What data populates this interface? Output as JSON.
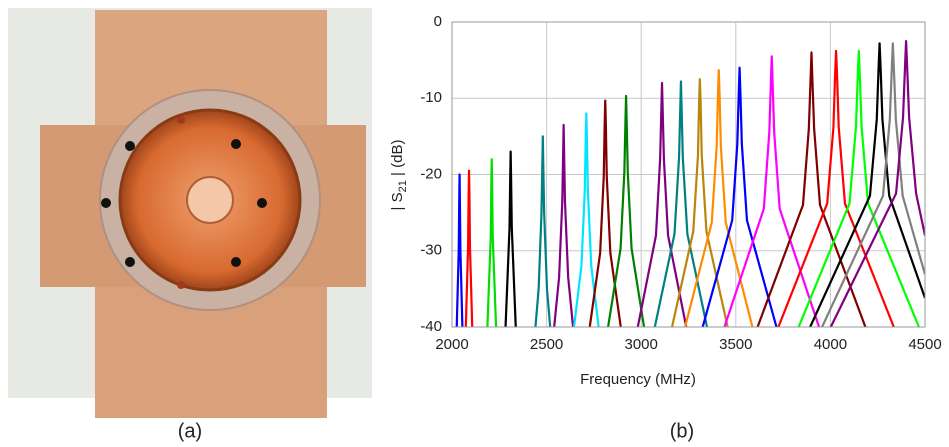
{
  "panel_a": {
    "caption": "(a)"
  },
  "panel_b": {
    "caption": "(b)"
  },
  "chart_data": {
    "type": "line",
    "xlabel": "Frequency (MHz)",
    "ylabel": [
      "| S",
      "21",
      " |  (dB)"
    ],
    "xlim": [
      2000,
      4500
    ],
    "xticks": [
      2000,
      2500,
      3000,
      3500,
      4000,
      4500
    ],
    "ylim": [
      -40,
      0
    ],
    "yticks": [
      -40,
      -30,
      -20,
      -10,
      0
    ],
    "grid": true,
    "series": [
      {
        "color": "#0000ff",
        "x": [
          2025,
          2035.5,
          2038.5,
          2040,
          2041.5,
          2044.5,
          2055
        ],
        "values": [
          -40,
          -30,
          -23,
          -20,
          -23,
          -30,
          -40
        ]
      },
      {
        "color": "#ff0000",
        "x": [
          2073,
          2085,
          2088,
          2090,
          2092,
          2095,
          2107
        ],
        "values": [
          -40,
          -29.5,
          -22.5,
          -19.5,
          -22.5,
          -29.5,
          -40
        ]
      },
      {
        "color": "#00e000",
        "x": [
          2187,
          2205,
          2208,
          2210,
          2212,
          2215,
          2233
        ],
        "values": [
          -40,
          -28,
          -21,
          -18,
          -21,
          -28,
          -40
        ]
      },
      {
        "color": "#000000",
        "x": [
          2283,
          2304,
          2308,
          2310,
          2312,
          2316,
          2337
        ],
        "values": [
          -40,
          -27,
          -20,
          -17,
          -20,
          -27,
          -40
        ]
      },
      {
        "color": "#008080",
        "x": [
          2441,
          2458,
          2473,
          2478,
          2480,
          2482,
          2487,
          2502,
          2519
        ],
        "values": [
          -40,
          -35,
          -25,
          -18,
          -15,
          -18,
          -25,
          -35,
          -40
        ]
      },
      {
        "color": "#800080",
        "x": [
          2540,
          2566,
          2583,
          2588,
          2590,
          2592,
          2597,
          2614,
          2640
        ],
        "values": [
          -40,
          -33.5,
          -23.5,
          -16.5,
          -13.5,
          -16.5,
          -23.5,
          -33.5,
          -40
        ]
      },
      {
        "color": "#00e5ff",
        "x": [
          2645,
          2684,
          2702,
          2707,
          2710,
          2713,
          2718,
          2736,
          2775
        ],
        "values": [
          -40,
          -32,
          -22,
          -15,
          -12,
          -15,
          -22,
          -32,
          -40
        ]
      },
      {
        "color": "#800000",
        "x": [
          2728,
          2783,
          2802,
          2807,
          2810,
          2813,
          2818,
          2837,
          2892
        ],
        "values": [
          -40,
          -30.3,
          -20.3,
          -13.3,
          -10.3,
          -13.3,
          -20.3,
          -30.3,
          -40
        ]
      },
      {
        "color": "#008000",
        "x": [
          2825,
          2891,
          2911,
          2917,
          2920,
          2923,
          2929,
          2949,
          3015
        ],
        "values": [
          -40,
          -29.7,
          -19.7,
          -12.7,
          -9.7,
          -12.7,
          -19.7,
          -29.7,
          -40
        ]
      },
      {
        "color": "#800080",
        "x": [
          2982,
          3078,
          3100,
          3107,
          3110,
          3113,
          3120,
          3142,
          3238
        ],
        "values": [
          -40,
          -28,
          -18,
          -11,
          -8,
          -11,
          -18,
          -28,
          -40
        ]
      },
      {
        "color": "#008080",
        "x": [
          3072,
          3176,
          3200,
          3207,
          3210,
          3213,
          3220,
          3244,
          3348
        ],
        "values": [
          -40,
          -27.8,
          -17.8,
          -10.8,
          -7.8,
          -10.8,
          -17.8,
          -27.8,
          -40
        ]
      },
      {
        "color": "#b8860b",
        "x": [
          3163,
          3275,
          3300,
          3306,
          3310,
          3314,
          3320,
          3345,
          3457
        ],
        "values": [
          -40,
          -27.5,
          -17.5,
          -10.5,
          -7.5,
          -10.5,
          -17.5,
          -27.5,
          -40
        ]
      },
      {
        "color": "#ff8c00",
        "x": [
          3232,
          3373,
          3399,
          3406,
          3410,
          3414,
          3421,
          3447,
          3588
        ],
        "values": [
          -40,
          -26.3,
          -16.3,
          -9.3,
          -6.3,
          -9.3,
          -16.3,
          -26.3,
          -40
        ]
      },
      {
        "color": "#0000ff",
        "x": [
          3325,
          3481,
          3508,
          3516,
          3520,
          3524,
          3532,
          3559,
          3715
        ],
        "values": [
          -40,
          -26,
          -16,
          -9,
          -6,
          -9,
          -16,
          -26,
          -40
        ]
      },
      {
        "color": "#ff00ff",
        "x": [
          3440,
          3648,
          3677,
          3686,
          3690,
          3694,
          3703,
          3732,
          3940
        ],
        "values": [
          -40,
          -24.5,
          -14.5,
          -7.5,
          -4.5,
          -7.5,
          -14.5,
          -24.5,
          -40
        ]
      },
      {
        "color": "#800000",
        "x": [
          3615,
          3855,
          3886,
          3896,
          3900,
          3904,
          3914,
          3945,
          4185
        ],
        "values": [
          -40,
          -24,
          -14,
          -7,
          -4,
          -7,
          -14,
          -24,
          -40
        ]
      },
      {
        "color": "#ff0000",
        "x": [
          3725,
          3983,
          4016,
          4025,
          4030,
          4035,
          4044,
          4077,
          4335
        ],
        "values": [
          -40,
          -23.8,
          -13.8,
          -6.8,
          -3.8,
          -6.8,
          -13.8,
          -23.8,
          -40
        ]
      },
      {
        "color": "#00ff00",
        "x": [
          3832,
          4101,
          4135,
          4145,
          4150,
          4155,
          4165,
          4199,
          4468
        ],
        "values": [
          -40,
          -23.8,
          -13.8,
          -6.8,
          -3.8,
          -6.8,
          -13.8,
          -23.8,
          -40
        ]
      },
      {
        "color": "#000000",
        "x": [
          3893,
          4209,
          4245,
          4255,
          4260,
          4265,
          4275,
          4311,
          4500
        ],
        "values": [
          -40,
          -22.8,
          -12.8,
          -5.8,
          -2.8,
          -5.8,
          -12.8,
          -22.8,
          -36.2
        ]
      },
      {
        "color": "#808080",
        "x": [
          3956,
          4278,
          4314,
          4325,
          4330,
          4335,
          4346,
          4382,
          4500
        ],
        "values": [
          -40,
          -22.8,
          -12.8,
          -5.8,
          -2.8,
          -5.8,
          -12.8,
          -22.8,
          -33.1
        ]
      },
      {
        "color": "#800080",
        "x": [
          4002,
          4347,
          4384,
          4395,
          4400,
          4405,
          4416,
          4453,
          4500
        ],
        "values": [
          -40,
          -22.5,
          -12.5,
          -5.5,
          -2.5,
          -5.5,
          -12.5,
          -22.5,
          -28
        ]
      }
    ]
  }
}
